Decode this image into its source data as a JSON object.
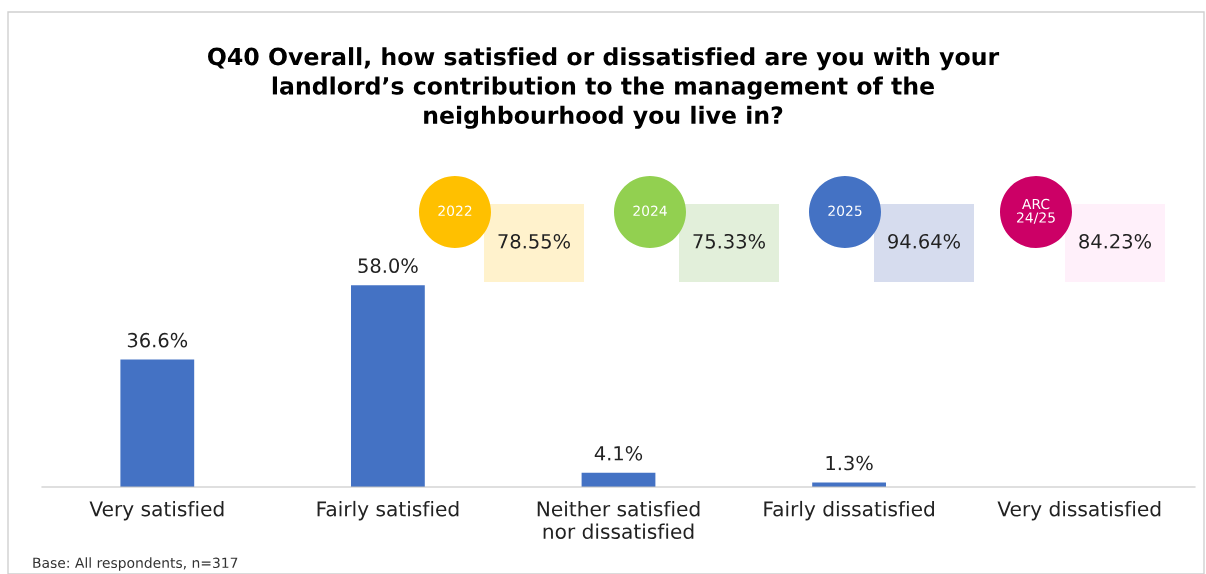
{
  "chart_data": {
    "type": "bar",
    "title": "Q40 Overall, how satisfied or dissatisfied are you with your\nlandlord’s contribution to the management of the\nneighbourhood you live in?",
    "categories": [
      "Very satisfied",
      "Fairly satisfied",
      "Neither satisfied\nnor dissatisfied",
      "Fairly dissatisfied",
      "Very dissatisfied"
    ],
    "values": [
      36.6,
      58.0,
      4.1,
      1.3,
      0
    ],
    "value_labels": [
      "36.6%",
      "58.0%",
      "4.1%",
      "1.3%",
      null
    ],
    "color": "#4472c4",
    "grid": false,
    "tick_labels": "x",
    "annotations": [
      "2022",
      "78.55%",
      "2024",
      "75.33%",
      "2025",
      "94.64%",
      "ARC\n24/25",
      "84.23%",
      "Base: All respondents, n=317"
    ]
  }
}
